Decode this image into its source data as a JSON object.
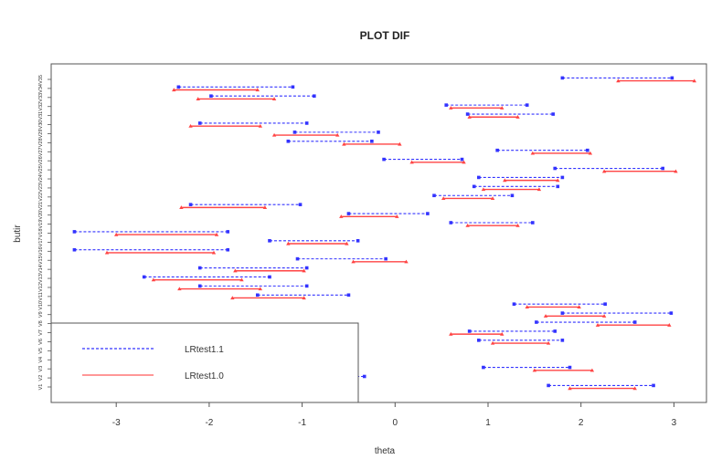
{
  "chart_data": {
    "type": "scatter",
    "title": "PLOT DIF",
    "xlabel": "theta",
    "ylabel": "butir",
    "xlim": [
      -3.7,
      3.35
    ],
    "xticks": [
      -3,
      -2,
      -1,
      0,
      1,
      2,
      3
    ],
    "items": [
      "V1",
      "V2",
      "V3",
      "V4",
      "V5",
      "V6",
      "V7",
      "V8",
      "V9",
      "V10",
      "V11",
      "V12",
      "V13",
      "V14",
      "V15",
      "V16",
      "V17",
      "V18",
      "V19",
      "V20",
      "V21",
      "V22",
      "V23",
      "V24",
      "V25",
      "V26",
      "V27",
      "V28",
      "V29",
      "V30",
      "V31",
      "V32",
      "V33",
      "V34",
      "V35"
    ],
    "series": [
      {
        "name": "LRtest1.1",
        "color": "#3333ff",
        "line_style": "dashed",
        "segments": [
          [
            1.65,
            2.78
          ],
          [
            -1.3,
            -0.33
          ],
          [
            0.95,
            1.88
          ],
          [
            -3.45,
            -1.85
          ],
          [
            -2.58,
            -1.28
          ],
          [
            0.9,
            1.8
          ],
          [
            0.8,
            1.72
          ],
          [
            1.52,
            2.58
          ],
          [
            1.8,
            2.97
          ],
          [
            1.28,
            2.26
          ],
          [
            -1.48,
            -0.5
          ],
          [
            -2.1,
            -0.95
          ],
          [
            -2.7,
            -1.35
          ],
          [
            -2.1,
            -0.95
          ],
          [
            -1.05,
            -0.1
          ],
          [
            -3.45,
            -1.8
          ],
          [
            -1.35,
            -0.4
          ],
          [
            -3.45,
            -1.8
          ],
          [
            0.6,
            1.48
          ],
          [
            -0.5,
            0.35
          ],
          [
            -2.2,
            -1.02
          ],
          [
            0.42,
            1.26
          ],
          [
            0.85,
            1.75
          ],
          [
            0.9,
            1.8
          ],
          [
            1.72,
            2.88
          ],
          [
            -0.12,
            0.72
          ],
          [
            1.1,
            2.07
          ],
          [
            -1.15,
            -0.25
          ],
          [
            -1.08,
            -0.18
          ],
          [
            -2.1,
            -0.95
          ],
          [
            0.78,
            1.7
          ],
          [
            0.55,
            1.42
          ],
          [
            -1.98,
            -0.87
          ],
          [
            -2.33,
            -1.1
          ],
          [
            1.8,
            2.98
          ]
        ]
      },
      {
        "name": "LRtest1.0",
        "color": "#ff4444",
        "line_style": "solid",
        "segments": [
          [
            1.88,
            2.58
          ],
          [
            -1.2,
            -0.55
          ],
          [
            1.5,
            2.12
          ],
          [
            -2.85,
            -1.82
          ],
          [
            -2.6,
            -1.6
          ],
          [
            1.05,
            1.65
          ],
          [
            0.6,
            1.15
          ],
          [
            2.18,
            2.95
          ],
          [
            1.62,
            2.25
          ],
          [
            1.42,
            1.98
          ],
          [
            -1.75,
            -0.98
          ],
          [
            -2.32,
            -1.45
          ],
          [
            -2.6,
            -1.65
          ],
          [
            -1.72,
            -0.98
          ],
          [
            -0.45,
            0.12
          ],
          [
            -3.1,
            -1.95
          ],
          [
            -1.15,
            -0.52
          ],
          [
            -3.0,
            -1.92
          ],
          [
            0.78,
            1.32
          ],
          [
            -0.58,
            0.02
          ],
          [
            -2.3,
            -1.4
          ],
          [
            0.52,
            1.05
          ],
          [
            0.95,
            1.55
          ],
          [
            1.18,
            1.75
          ],
          [
            2.25,
            3.02
          ],
          [
            0.18,
            0.74
          ],
          [
            1.48,
            2.1
          ],
          [
            -0.55,
            0.05
          ],
          [
            -1.3,
            -0.62
          ],
          [
            -2.2,
            -1.45
          ],
          [
            0.8,
            1.32
          ],
          [
            0.6,
            1.15
          ],
          [
            -2.12,
            -1.3
          ],
          [
            -2.38,
            -1.48
          ],
          [
            2.4,
            3.22
          ]
        ]
      }
    ],
    "legend": {
      "position": "bottom-left",
      "entries": [
        "LRtest1.1",
        "LRtest1.0"
      ]
    }
  }
}
